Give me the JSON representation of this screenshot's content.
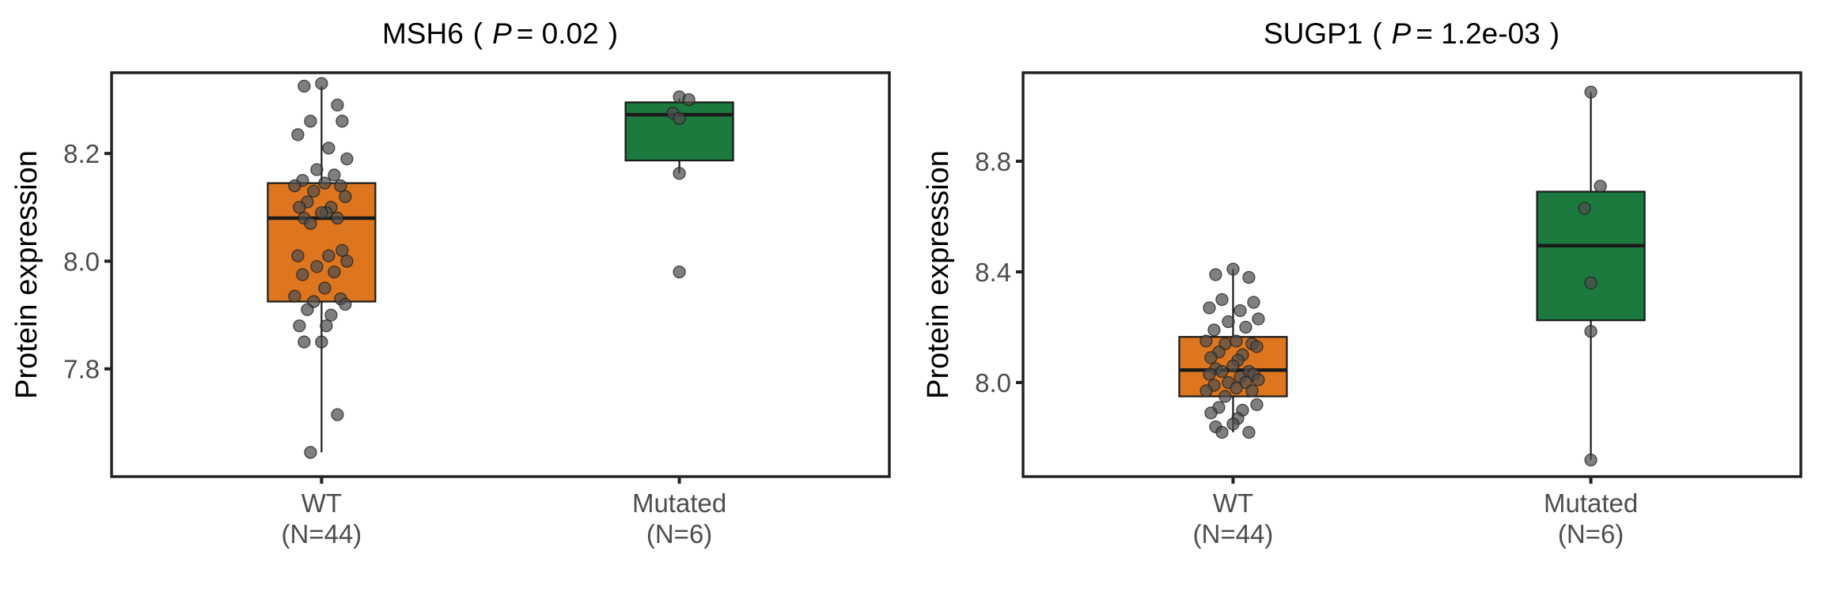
{
  "colors": {
    "wt_fill": "#DD761E",
    "mutated_fill": "#1C7A3F",
    "point_fill": "#4d4d4d",
    "frame": "#222222"
  },
  "chart_data": [
    {
      "type": "box",
      "title": {
        "gene": "MSH6",
        "open": "(",
        "p_symbol": "P",
        "p_text": "= 0.02",
        "close": ")"
      },
      "ylabel": "Protein expression",
      "ylim": [
        7.6,
        8.35
      ],
      "yticks": [
        {
          "value": 7.8,
          "label": "7.8"
        },
        {
          "value": 8.0,
          "label": "8.0"
        },
        {
          "value": 8.2,
          "label": "8.2"
        }
      ],
      "categories": [
        {
          "name": "WT",
          "n_label": "(N=44)"
        },
        {
          "name": "Mutated",
          "n_label": "(N=6)"
        }
      ],
      "boxes": [
        {
          "q1": 7.925,
          "median": 8.08,
          "q3": 8.145,
          "whisker_low": 7.645,
          "whisker_high": 8.325
        },
        {
          "q1": 8.187,
          "median": 8.272,
          "q3": 8.295,
          "whisker_low": 8.163,
          "whisker_high": 8.302
        }
      ],
      "points": [
        [
          8.33,
          8.325,
          8.29,
          8.26,
          8.26,
          8.235,
          8.21,
          8.19,
          8.17,
          8.16,
          8.15,
          8.145,
          8.14,
          8.14,
          8.13,
          8.12,
          8.11,
          8.1,
          8.1,
          8.09,
          8.09,
          8.08,
          8.08,
          8.07,
          8.02,
          8.01,
          8.01,
          8.0,
          7.99,
          7.98,
          7.975,
          7.95,
          7.935,
          7.93,
          7.925,
          7.92,
          7.91,
          7.9,
          7.88,
          7.88,
          7.85,
          7.85,
          7.715,
          7.645
        ],
        [
          8.305,
          8.3,
          8.275,
          8.265,
          8.163,
          7.98
        ]
      ]
    },
    {
      "type": "box",
      "title": {
        "gene": "SUGP1",
        "open": "(",
        "p_symbol": "P",
        "p_text": "= 1.2e-03",
        "close": ")"
      },
      "ylabel": "Protein expression",
      "ylim": [
        7.66,
        9.12
      ],
      "yticks": [
        {
          "value": 8.0,
          "label": "8.0"
        },
        {
          "value": 8.4,
          "label": "8.4"
        },
        {
          "value": 8.8,
          "label": "8.8"
        }
      ],
      "categories": [
        {
          "name": "WT",
          "n_label": "(N=44)"
        },
        {
          "name": "Mutated",
          "n_label": "(N=6)"
        }
      ],
      "boxes": [
        {
          "q1": 7.95,
          "median": 8.045,
          "q3": 8.165,
          "whisker_low": 7.82,
          "whisker_high": 8.41
        },
        {
          "q1": 8.225,
          "median": 8.495,
          "q3": 8.69,
          "whisker_low": 7.72,
          "whisker_high": 9.05
        }
      ],
      "points": [
        [
          8.41,
          8.39,
          8.38,
          8.3,
          8.29,
          8.27,
          8.26,
          8.23,
          8.22,
          8.2,
          8.19,
          8.15,
          8.15,
          8.14,
          8.14,
          8.13,
          8.11,
          8.1,
          8.09,
          8.08,
          8.06,
          8.05,
          8.04,
          8.04,
          8.03,
          8.03,
          8.02,
          8.01,
          8.0,
          8.0,
          7.99,
          7.98,
          7.97,
          7.97,
          7.95,
          7.92,
          7.91,
          7.9,
          7.89,
          7.87,
          7.85,
          7.84,
          7.82,
          7.82
        ],
        [
          9.05,
          8.71,
          8.63,
          8.36,
          8.185,
          7.72
        ]
      ]
    }
  ]
}
